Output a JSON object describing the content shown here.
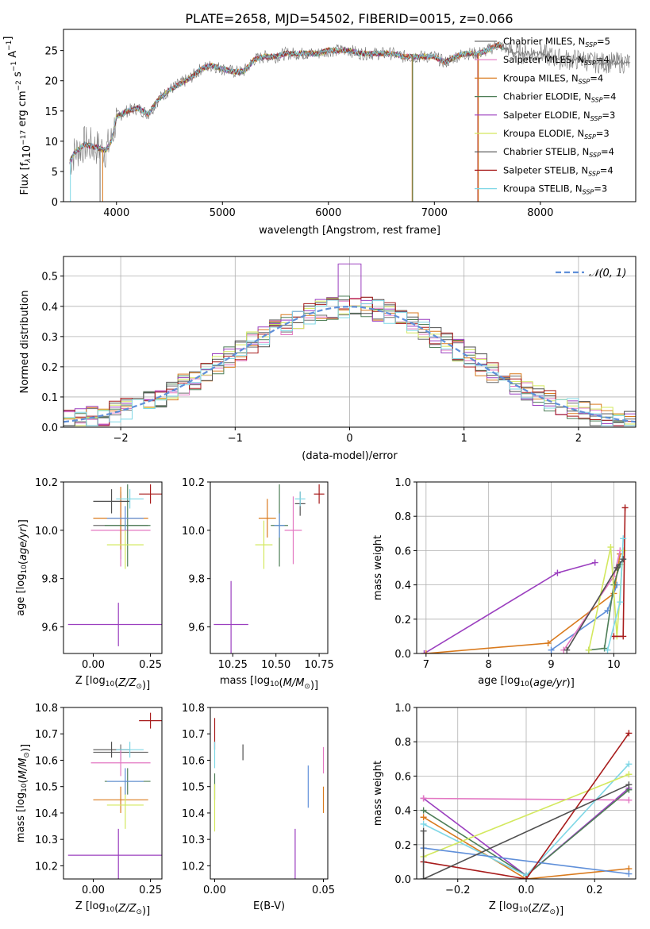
{
  "figure_title": "PLATE=2658, MJD=54502, FIBERID=0015, z=0.066",
  "legend": [
    {
      "label": "Chabrier MILES, N",
      "sub": "SSP",
      "suffix": "=5",
      "color": "#6f6f6f"
    },
    {
      "label": "Salpeter MILES, N",
      "sub": "SSP",
      "suffix": "=4",
      "color": "#e377c2"
    },
    {
      "label": "Kroupa MILES, N",
      "sub": "SSP",
      "suffix": "=4",
      "color": "#d97a1d"
    },
    {
      "label": "Chabrier ELODIE, N",
      "sub": "SSP",
      "suffix": "=4",
      "color": "#4e7e57"
    },
    {
      "label": "Salpeter ELODIE, N",
      "sub": "SSP",
      "suffix": "=3",
      "color": "#9b3fbf"
    },
    {
      "label": "Kroupa ELODIE, N",
      "sub": "SSP",
      "suffix": "=3",
      "color": "#d3e85e"
    },
    {
      "label": "Chabrier STELIB, N",
      "sub": "SSP",
      "suffix": "=4",
      "color": "#505050"
    },
    {
      "label": "Salpeter STELIB, N",
      "sub": "SSP",
      "suffix": "=4",
      "color": "#a81c1c"
    },
    {
      "label": "Kroupa STELIB, N",
      "sub": "SSP",
      "suffix": "=3",
      "color": "#7fd7e6"
    }
  ],
  "normal_legend": "𝒩(0, 1)",
  "chart_data": [
    {
      "id": "spectrum",
      "type": "line",
      "xlabel": "wavelength [Angstrom, rest frame]",
      "ylabel": "Flux [f",
      "ylabel_rich": [
        "Flux [f",
        "λ",
        "10",
        "−17",
        " erg cm",
        "−2",
        " s",
        "−1",
        " A",
        "−1",
        "]"
      ],
      "xlim": [
        3500,
        8900
      ],
      "ylim": [
        0,
        28.5
      ],
      "xticks": [
        4000,
        5000,
        6000,
        7000,
        8000
      ],
      "yticks": [
        0,
        5,
        10,
        15,
        20,
        25
      ],
      "continuum_x": [
        3560,
        3600,
        3700,
        3800,
        3900,
        3950,
        4000,
        4100,
        4200,
        4300,
        4400,
        4500,
        4600,
        4700,
        4800,
        4900,
        5000,
        5100,
        5200,
        5300,
        5400,
        5500,
        5600,
        5700,
        5800,
        5900,
        6000,
        6100,
        6200,
        6300,
        6400,
        6500,
        6600,
        6700,
        6800,
        6900,
        7000,
        7100,
        7200,
        7300,
        7400,
        7500,
        7600,
        7700,
        7800,
        7900,
        8000,
        8100,
        8200,
        8300,
        8400,
        8500,
        8600,
        8800
      ],
      "continuum_y": [
        6.5,
        8,
        9.5,
        9,
        8.5,
        10,
        14,
        15,
        15.5,
        14.5,
        17,
        18.5,
        19.5,
        20.5,
        22,
        22.5,
        22,
        21.5,
        21.5,
        23.5,
        24,
        24,
        24.5,
        24.5,
        24.5,
        24.5,
        25,
        25,
        25,
        24.5,
        24.5,
        24.5,
        24.5,
        24,
        24,
        24,
        24,
        23,
        24,
        24.5,
        24.5,
        25,
        26,
        25,
        24.5,
        24.5,
        24.5,
        24,
        23.5,
        23.5,
        23.5,
        23,
        23,
        23
      ]
    },
    {
      "id": "residuals",
      "type": "step-histogram",
      "xlabel": "(data-model)/error",
      "ylabel": "Normed distribution",
      "xlim": [
        -2.5,
        2.5
      ],
      "ylim": [
        0,
        0.565
      ],
      "xticks": [
        -2,
        -1,
        0,
        1,
        2
      ],
      "yticks": [
        0.0,
        0.1,
        0.2,
        0.3,
        0.4,
        0.5
      ],
      "grid": true,
      "bins": 50,
      "peak_bin": {
        "x": 0.0,
        "y": 0.54
      },
      "normal_curve": {
        "mean": 0,
        "sigma": 1
      }
    },
    {
      "id": "age-vs-Z",
      "type": "errorbar",
      "xlabel": "Z [log10(Z/Z⊙)]",
      "ylabel": "age [log10(age/yr)]",
      "xlim": [
        -0.13,
        0.3
      ],
      "ylim": [
        9.49,
        10.2
      ],
      "xticks": [
        0.0,
        0.25
      ],
      "yticks": [
        9.6,
        9.8,
        10.0,
        10.2
      ],
      "points": [
        {
          "x": 0.12,
          "y": 10.02,
          "xerr": 0.12,
          "yerr": 0.14,
          "color": "#6f6f6f"
        },
        {
          "x": 0.12,
          "y": 10.0,
          "xerr": 0.13,
          "yerr": 0.15,
          "color": "#e377c2"
        },
        {
          "x": 0.12,
          "y": 10.05,
          "xerr": 0.12,
          "yerr": 0.13,
          "color": "#d97a1d"
        },
        {
          "x": 0.15,
          "y": 10.02,
          "xerr": 0.1,
          "yerr": 0.17,
          "color": "#4e7e57"
        },
        {
          "x": 0.11,
          "y": 9.61,
          "xerr": 0.22,
          "yerr": 0.09,
          "color": "#9b3fbf"
        },
        {
          "x": 0.14,
          "y": 9.94,
          "xerr": 0.08,
          "yerr": 0.1,
          "color": "#d3e85e"
        },
        {
          "x": 0.08,
          "y": 10.12,
          "xerr": 0.08,
          "yerr": 0.05,
          "color": "#505050"
        },
        {
          "x": 0.25,
          "y": 10.15,
          "xerr": 0.05,
          "yerr": 0.04,
          "color": "#a81c1c"
        },
        {
          "x": 0.16,
          "y": 10.13,
          "xerr": 0.06,
          "yerr": 0.04,
          "color": "#7fd7e6"
        },
        {
          "x": 0.14,
          "y": 10.05,
          "xerr": 0.08,
          "yerr": 0.05,
          "color": "#5f8fd9"
        }
      ]
    },
    {
      "id": "age-vs-mass",
      "type": "errorbar",
      "xlabel": "mass [log10(M/M⊙)]",
      "xlim": [
        10.12,
        10.8
      ],
      "ylim": [
        9.49,
        10.2
      ],
      "xticks": [
        10.25,
        10.5,
        10.75
      ],
      "yticks": [
        9.6,
        9.8,
        10.0,
        10.2
      ],
      "points": [
        {
          "x": 10.6,
          "y": 10.0,
          "xerr": 0.05,
          "yerr": 0.14,
          "color": "#e377c2"
        },
        {
          "x": 10.45,
          "y": 10.05,
          "xerr": 0.05,
          "yerr": 0.08,
          "color": "#d97a1d"
        },
        {
          "x": 10.52,
          "y": 10.02,
          "xerr": 0.05,
          "yerr": 0.17,
          "color": "#4e7e57"
        },
        {
          "x": 10.24,
          "y": 9.61,
          "xerr": 0.1,
          "yerr": 0.18,
          "color": "#9b3fbf"
        },
        {
          "x": 10.43,
          "y": 9.94,
          "xerr": 0.05,
          "yerr": 0.1,
          "color": "#d3e85e"
        },
        {
          "x": 10.64,
          "y": 10.11,
          "xerr": 0.03,
          "yerr": 0.05,
          "color": "#505050"
        },
        {
          "x": 10.75,
          "y": 10.15,
          "xerr": 0.03,
          "yerr": 0.04,
          "color": "#a81c1c"
        },
        {
          "x": 10.64,
          "y": 10.13,
          "xerr": 0.03,
          "yerr": 0.03,
          "color": "#7fd7e6"
        },
        {
          "x": 10.52,
          "y": 10.02,
          "xerr": 0.03,
          "yerr": 0.05,
          "color": "#5f8fd9"
        }
      ]
    },
    {
      "id": "weight-vs-age",
      "type": "line",
      "xlabel": "age [log10(age/yr)]",
      "ylabel": "mass weight",
      "xlim": [
        6.85,
        10.35
      ],
      "ylim": [
        0,
        1.0
      ],
      "xticks": [
        7,
        8,
        9,
        10
      ],
      "yticks": [
        0.0,
        0.2,
        0.4,
        0.6,
        0.8,
        1.0
      ],
      "grid": true,
      "series": [
        {
          "color": "#9b3fbf",
          "x": [
            6.97,
            9.1,
            9.7
          ],
          "y": [
            0.0,
            0.47,
            0.53
          ]
        },
        {
          "color": "#d97a1d",
          "x": [
            7.0,
            8.95,
            10.0,
            10.1
          ],
          "y": [
            0.0,
            0.06,
            0.35,
            0.58
          ]
        },
        {
          "color": "#5f8fd9",
          "x": [
            9.0,
            9.9,
            10.05
          ],
          "y": [
            0.02,
            0.25,
            0.4
          ]
        },
        {
          "color": "#e377c2",
          "x": [
            9.2,
            10.0,
            10.1
          ],
          "y": [
            0.02,
            0.45,
            0.6
          ]
        },
        {
          "color": "#4e7e57",
          "x": [
            9.6,
            9.85,
            10.0,
            10.1
          ],
          "y": [
            0.02,
            0.03,
            0.4,
            0.52
          ]
        },
        {
          "color": "#d3e85e",
          "x": [
            9.6,
            9.95,
            10.05,
            10.15
          ],
          "y": [
            0.02,
            0.62,
            0.1,
            0.6
          ]
        },
        {
          "color": "#a81c1c",
          "x": [
            10.0,
            10.15,
            10.18
          ],
          "y": [
            0.1,
            0.1,
            0.85
          ]
        },
        {
          "color": "#7fd7e6",
          "x": [
            9.9,
            10.1,
            10.15
          ],
          "y": [
            0.02,
            0.3,
            0.67
          ]
        },
        {
          "color": "#505050",
          "x": [
            9.25,
            10.05,
            10.15
          ],
          "y": [
            0.02,
            0.5,
            0.55
          ]
        }
      ]
    },
    {
      "id": "mass-vs-Z",
      "type": "errorbar",
      "xlabel": "Z [log10(Z/Z⊙)]",
      "ylabel": "mass [log10(M/M⊙)]",
      "xlim": [
        -0.13,
        0.3
      ],
      "ylim": [
        10.15,
        10.8
      ],
      "xticks": [
        0.0,
        0.25
      ],
      "yticks": [
        10.2,
        10.3,
        10.4,
        10.5,
        10.6,
        10.7,
        10.8
      ],
      "points": [
        {
          "x": 0.12,
          "y": 10.63,
          "xerr": 0.12,
          "yerr": 0.03,
          "color": "#6f6f6f"
        },
        {
          "x": 0.12,
          "y": 10.59,
          "xerr": 0.13,
          "yerr": 0.05,
          "color": "#e377c2"
        },
        {
          "x": 0.12,
          "y": 10.45,
          "xerr": 0.12,
          "yerr": 0.05,
          "color": "#d97a1d"
        },
        {
          "x": 0.15,
          "y": 10.52,
          "xerr": 0.1,
          "yerr": 0.05,
          "color": "#4e7e57"
        },
        {
          "x": 0.11,
          "y": 10.24,
          "xerr": 0.22,
          "yerr": 0.1,
          "color": "#9b3fbf"
        },
        {
          "x": 0.14,
          "y": 10.43,
          "xerr": 0.08,
          "yerr": 0.09,
          "color": "#d3e85e"
        },
        {
          "x": 0.08,
          "y": 10.64,
          "xerr": 0.08,
          "yerr": 0.03,
          "color": "#505050"
        },
        {
          "x": 0.25,
          "y": 10.75,
          "xerr": 0.05,
          "yerr": 0.03,
          "color": "#a81c1c"
        },
        {
          "x": 0.16,
          "y": 10.64,
          "xerr": 0.06,
          "yerr": 0.03,
          "color": "#7fd7e6"
        },
        {
          "x": 0.14,
          "y": 10.52,
          "xerr": 0.08,
          "yerr": 0.05,
          "color": "#5f8fd9"
        }
      ]
    },
    {
      "id": "mass-vs-ebv",
      "type": "errorbar",
      "xlabel": "E(B-V)",
      "xlim": [
        -0.002,
        0.052
      ],
      "ylim": [
        10.15,
        10.8
      ],
      "xticks": [
        0.0,
        0.05
      ],
      "yticks": [
        10.2,
        10.3,
        10.4,
        10.5,
        10.6,
        10.7,
        10.8
      ],
      "points": [
        {
          "x": 0.0,
          "y": 10.7,
          "yerr": 0.06,
          "color": "#a81c1c"
        },
        {
          "x": 0.0,
          "y": 10.62,
          "yerr": 0.05,
          "color": "#7fd7e6"
        },
        {
          "x": 0.0,
          "y": 10.5,
          "yerr": 0.05,
          "color": "#4e7e57"
        },
        {
          "x": 0.0,
          "y": 10.42,
          "yerr": 0.09,
          "color": "#d3e85e"
        },
        {
          "x": 0.013,
          "y": 10.63,
          "yerr": 0.03,
          "color": "#505050"
        },
        {
          "x": 0.037,
          "y": 10.24,
          "yerr": 0.1,
          "color": "#9b3fbf"
        },
        {
          "x": 0.043,
          "y": 10.5,
          "yerr": 0.08,
          "color": "#5f8fd9"
        },
        {
          "x": 0.05,
          "y": 10.6,
          "yerr": 0.05,
          "color": "#e377c2"
        },
        {
          "x": 0.05,
          "y": 10.45,
          "yerr": 0.05,
          "color": "#d97a1d"
        }
      ]
    },
    {
      "id": "weight-vs-Z",
      "type": "line",
      "xlabel": "Z [log10(Z/Z⊙)]",
      "ylabel": "mass weight",
      "xlim": [
        -0.32,
        0.32
      ],
      "ylim": [
        0,
        1.0
      ],
      "xticks": [
        -0.2,
        0.0,
        0.2
      ],
      "yticks": [
        0.0,
        0.2,
        0.4,
        0.6,
        0.8,
        1.0
      ],
      "grid": true,
      "series": [
        {
          "color": "#9b3fbf",
          "x": [
            -0.3,
            0.0,
            0.3
          ],
          "y": [
            0.47,
            0.02,
            0.53
          ]
        },
        {
          "color": "#e377c2",
          "x": [
            -0.3,
            0.3
          ],
          "y": [
            0.47,
            0.46
          ]
        },
        {
          "color": "#d97a1d",
          "x": [
            -0.3,
            0.0,
            0.3
          ],
          "y": [
            0.36,
            0.0,
            0.06
          ]
        },
        {
          "color": "#4e7e57",
          "x": [
            -0.3,
            0.0,
            0.3
          ],
          "y": [
            0.4,
            0.02,
            0.52
          ]
        },
        {
          "color": "#7fd7e6",
          "x": [
            -0.3,
            0.0,
            0.3
          ],
          "y": [
            0.32,
            0.02,
            0.67
          ]
        },
        {
          "color": "#d3e85e",
          "x": [
            -0.3,
            0.3
          ],
          "y": [
            0.13,
            0.61
          ]
        },
        {
          "color": "#5f8fd9",
          "x": [
            -0.3,
            0.3
          ],
          "y": [
            0.18,
            0.03
          ]
        },
        {
          "color": "#a81c1c",
          "x": [
            -0.3,
            0.0,
            0.3
          ],
          "y": [
            0.1,
            0.0,
            0.85
          ]
        },
        {
          "color": "#505050",
          "x": [
            -0.3,
            -0.3,
            0.3
          ],
          "y": [
            0.28,
            0.0,
            0.55
          ]
        }
      ]
    }
  ]
}
